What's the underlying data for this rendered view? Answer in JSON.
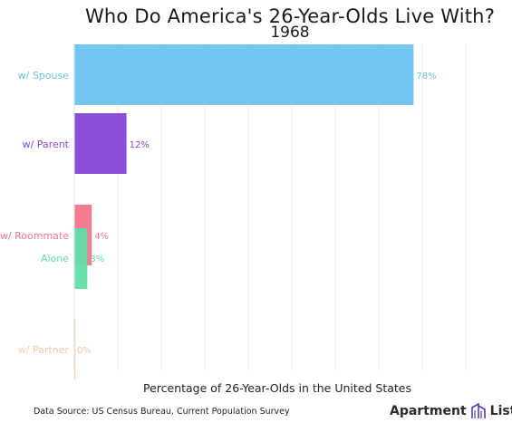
{
  "title": "Who Do America's 26-Year-Olds Live With?",
  "subtitle": "1968",
  "footer": {
    "source": "Data Source: US Census Bureau, Current Population Survey",
    "brand_left": "Apartment",
    "brand_right": "List"
  },
  "chart_data": {
    "type": "bar",
    "orientation": "horizontal",
    "title": "Who Do America's 26-Year-Olds Live With?",
    "subtitle": "1968",
    "xlabel": "Percentage of 26-Year-Olds in the United States",
    "ylabel": "",
    "xlim": [
      0,
      90
    ],
    "grid": true,
    "categories": [
      "w/ Spouse",
      "w/ Parent",
      "w/ Roommate",
      "Alone",
      "w/ Partner"
    ],
    "values": [
      78,
      12,
      4,
      3,
      0
    ],
    "value_labels": [
      "78%",
      "12%",
      "4%",
      "3%",
      "0%"
    ],
    "colors": [
      "#6cc3ef",
      "#8545d9",
      "#f2758d",
      "#62dca7",
      "#f4c7a4"
    ]
  }
}
